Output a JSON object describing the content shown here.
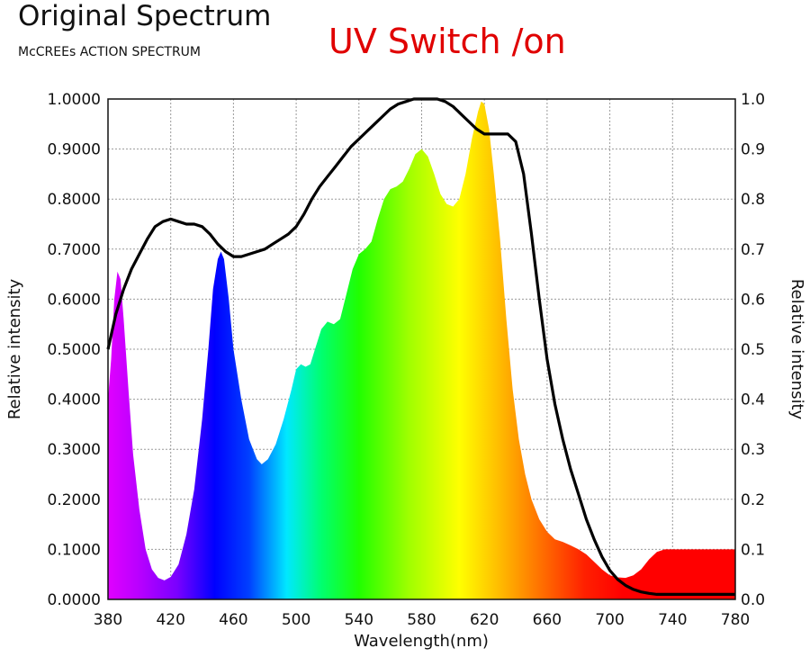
{
  "header": {
    "title": "Original Spectrum",
    "subtitle": "McCREEs ACTION SPECTRUM",
    "mode_label": "UV Switch /on",
    "mode_color": "#e00000"
  },
  "chart_data": {
    "type": "area",
    "xlabel": "Wavelength(nm)",
    "ylabel_left": "Relative intensity",
    "ylabel_right": "Relative intensity",
    "xlim": [
      380,
      780
    ],
    "ylim": [
      0,
      1
    ],
    "grid": true,
    "x_ticks": [
      "380",
      "420",
      "460",
      "500",
      "540",
      "580",
      "620",
      "660",
      "700",
      "740",
      "780"
    ],
    "y_ticks_left": [
      "0.0000",
      "0.1000",
      "0.2000",
      "0.3000",
      "0.4000",
      "0.5000",
      "0.6000",
      "0.7000",
      "0.8000",
      "0.9000",
      "1.0000"
    ],
    "y_ticks_right": [
      "0.0",
      "0.1",
      "0.2",
      "0.3",
      "0.4",
      "0.5",
      "0.6",
      "0.7",
      "0.8",
      "0.9",
      "1.0"
    ],
    "series": [
      {
        "kind": "spectrum-fill",
        "points": [
          [
            380,
            0.4
          ],
          [
            382,
            0.48
          ],
          [
            384,
            0.6
          ],
          [
            386,
            0.655
          ],
          [
            388,
            0.64
          ],
          [
            390,
            0.56
          ],
          [
            393,
            0.42
          ],
          [
            396,
            0.29
          ],
          [
            400,
            0.18
          ],
          [
            404,
            0.1
          ],
          [
            408,
            0.06
          ],
          [
            412,
            0.043
          ],
          [
            416,
            0.038
          ],
          [
            420,
            0.045
          ],
          [
            425,
            0.07
          ],
          [
            430,
            0.13
          ],
          [
            435,
            0.22
          ],
          [
            440,
            0.36
          ],
          [
            444,
            0.5
          ],
          [
            447,
            0.62
          ],
          [
            450,
            0.68
          ],
          [
            452,
            0.695
          ],
          [
            454,
            0.68
          ],
          [
            457,
            0.6
          ],
          [
            460,
            0.5
          ],
          [
            465,
            0.4
          ],
          [
            470,
            0.32
          ],
          [
            475,
            0.28
          ],
          [
            478,
            0.27
          ],
          [
            482,
            0.28
          ],
          [
            487,
            0.31
          ],
          [
            492,
            0.36
          ],
          [
            497,
            0.42
          ],
          [
            500,
            0.46
          ],
          [
            503,
            0.47
          ],
          [
            506,
            0.465
          ],
          [
            509,
            0.47
          ],
          [
            512,
            0.5
          ],
          [
            516,
            0.54
          ],
          [
            520,
            0.555
          ],
          [
            524,
            0.55
          ],
          [
            528,
            0.56
          ],
          [
            532,
            0.61
          ],
          [
            536,
            0.66
          ],
          [
            540,
            0.69
          ],
          [
            544,
            0.7
          ],
          [
            548,
            0.715
          ],
          [
            552,
            0.76
          ],
          [
            556,
            0.8
          ],
          [
            560,
            0.82
          ],
          [
            564,
            0.825
          ],
          [
            568,
            0.835
          ],
          [
            572,
            0.86
          ],
          [
            576,
            0.89
          ],
          [
            580,
            0.9
          ],
          [
            584,
            0.885
          ],
          [
            588,
            0.85
          ],
          [
            592,
            0.81
          ],
          [
            596,
            0.79
          ],
          [
            600,
            0.785
          ],
          [
            604,
            0.8
          ],
          [
            608,
            0.85
          ],
          [
            612,
            0.92
          ],
          [
            616,
            0.975
          ],
          [
            618,
            0.995
          ],
          [
            620,
            0.99
          ],
          [
            623,
            0.94
          ],
          [
            626,
            0.85
          ],
          [
            630,
            0.72
          ],
          [
            634,
            0.56
          ],
          [
            638,
            0.42
          ],
          [
            642,
            0.32
          ],
          [
            646,
            0.25
          ],
          [
            650,
            0.2
          ],
          [
            655,
            0.16
          ],
          [
            660,
            0.135
          ],
          [
            665,
            0.12
          ],
          [
            670,
            0.115
          ],
          [
            675,
            0.108
          ],
          [
            680,
            0.1
          ],
          [
            685,
            0.09
          ],
          [
            690,
            0.075
          ],
          [
            695,
            0.06
          ],
          [
            700,
            0.048
          ],
          [
            705,
            0.044
          ],
          [
            710,
            0.043
          ],
          [
            715,
            0.048
          ],
          [
            720,
            0.06
          ],
          [
            725,
            0.08
          ],
          [
            730,
            0.095
          ],
          [
            735,
            0.1
          ],
          [
            740,
            0.1
          ],
          [
            745,
            0.1
          ],
          [
            750,
            0.1
          ],
          [
            755,
            0.1
          ],
          [
            760,
            0.1
          ],
          [
            765,
            0.1
          ],
          [
            770,
            0.1
          ],
          [
            775,
            0.1
          ],
          [
            780,
            0.1
          ]
        ]
      },
      {
        "kind": "action-spectrum-line",
        "color": "#000000",
        "points": [
          [
            380,
            0.5
          ],
          [
            385,
            0.57
          ],
          [
            390,
            0.62
          ],
          [
            395,
            0.66
          ],
          [
            400,
            0.69
          ],
          [
            405,
            0.72
          ],
          [
            410,
            0.745
          ],
          [
            415,
            0.755
          ],
          [
            420,
            0.76
          ],
          [
            425,
            0.755
          ],
          [
            430,
            0.75
          ],
          [
            435,
            0.75
          ],
          [
            440,
            0.745
          ],
          [
            445,
            0.73
          ],
          [
            450,
            0.71
          ],
          [
            455,
            0.695
          ],
          [
            460,
            0.685
          ],
          [
            465,
            0.685
          ],
          [
            470,
            0.69
          ],
          [
            475,
            0.695
          ],
          [
            480,
            0.7
          ],
          [
            485,
            0.71
          ],
          [
            490,
            0.72
          ],
          [
            495,
            0.73
          ],
          [
            500,
            0.745
          ],
          [
            505,
            0.77
          ],
          [
            510,
            0.8
          ],
          [
            515,
            0.825
          ],
          [
            520,
            0.845
          ],
          [
            525,
            0.865
          ],
          [
            530,
            0.885
          ],
          [
            535,
            0.905
          ],
          [
            540,
            0.92
          ],
          [
            545,
            0.935
          ],
          [
            550,
            0.95
          ],
          [
            555,
            0.965
          ],
          [
            560,
            0.98
          ],
          [
            565,
            0.99
          ],
          [
            570,
            0.995
          ],
          [
            575,
            1.0
          ],
          [
            580,
            1.0
          ],
          [
            585,
            1.0
          ],
          [
            590,
            1.0
          ],
          [
            595,
            0.995
          ],
          [
            600,
            0.985
          ],
          [
            605,
            0.97
          ],
          [
            610,
            0.955
          ],
          [
            615,
            0.94
          ],
          [
            620,
            0.93
          ],
          [
            625,
            0.93
          ],
          [
            630,
            0.93
          ],
          [
            635,
            0.93
          ],
          [
            640,
            0.915
          ],
          [
            645,
            0.85
          ],
          [
            650,
            0.73
          ],
          [
            655,
            0.6
          ],
          [
            660,
            0.48
          ],
          [
            665,
            0.39
          ],
          [
            670,
            0.32
          ],
          [
            675,
            0.26
          ],
          [
            680,
            0.21
          ],
          [
            685,
            0.16
          ],
          [
            690,
            0.12
          ],
          [
            695,
            0.085
          ],
          [
            700,
            0.058
          ],
          [
            705,
            0.04
          ],
          [
            710,
            0.028
          ],
          [
            715,
            0.02
          ],
          [
            720,
            0.015
          ],
          [
            725,
            0.012
          ],
          [
            730,
            0.01
          ],
          [
            740,
            0.01
          ],
          [
            760,
            0.01
          ],
          [
            780,
            0.01
          ]
        ]
      }
    ]
  }
}
